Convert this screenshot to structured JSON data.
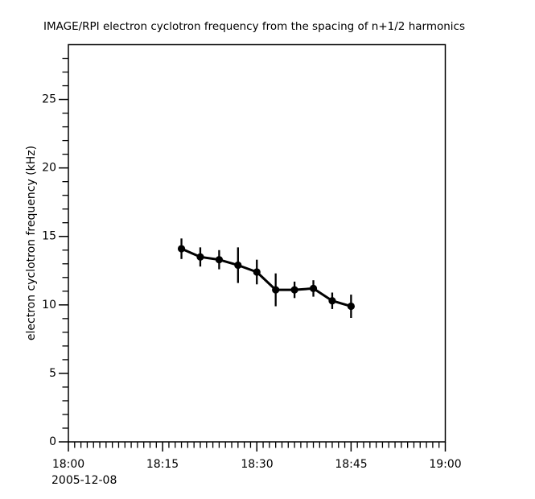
{
  "page": {
    "background_color": "#ffffff",
    "foreground_color": "#000000"
  },
  "chart_data": {
    "type": "line",
    "title": "IMAGE/RPI  electron cyclotron frequency from the spacing of n+1/2 harmonics",
    "xlabel": "",
    "ylabel": "electron cyclotron frequency (kHz)",
    "date_annotation": "2005-12-08",
    "grid": false,
    "legend": false,
    "x_axis": {
      "start_time": "18:00",
      "end_time": "19:00",
      "range_minutes": [
        0,
        60
      ],
      "tick_labels": [
        "18:00",
        "18:15",
        "18:30",
        "18:45",
        "19:00"
      ],
      "tick_minutes": [
        0,
        15,
        30,
        45,
        60
      ],
      "minor_tick_every_minutes": 1
    },
    "y_axis": {
      "range": [
        0,
        29
      ],
      "tick_labels": [
        "0",
        "5",
        "10",
        "15",
        "20",
        "25"
      ],
      "major_ticks": [
        0,
        5,
        10,
        15,
        20,
        25
      ],
      "minor_tick_every": 1
    },
    "series": [
      {
        "name": "electron cyclotron frequency",
        "color": "#000000",
        "marker": "filled-circle",
        "x_times": [
          "18:18",
          "18:21",
          "18:24",
          "18:27",
          "18:30",
          "18:33",
          "18:36",
          "18:39",
          "18:42",
          "18:45"
        ],
        "x_minutes_after_1800": [
          18,
          21,
          24,
          27,
          30,
          33,
          36,
          39,
          42,
          45
        ],
        "values_khz": [
          14.1,
          13.5,
          13.3,
          12.9,
          12.4,
          11.1,
          11.1,
          11.2,
          10.3,
          9.9
        ],
        "error_khz": [
          0.75,
          0.7,
          0.7,
          1.3,
          0.9,
          1.2,
          0.6,
          0.6,
          0.6,
          0.85
        ]
      }
    ]
  }
}
